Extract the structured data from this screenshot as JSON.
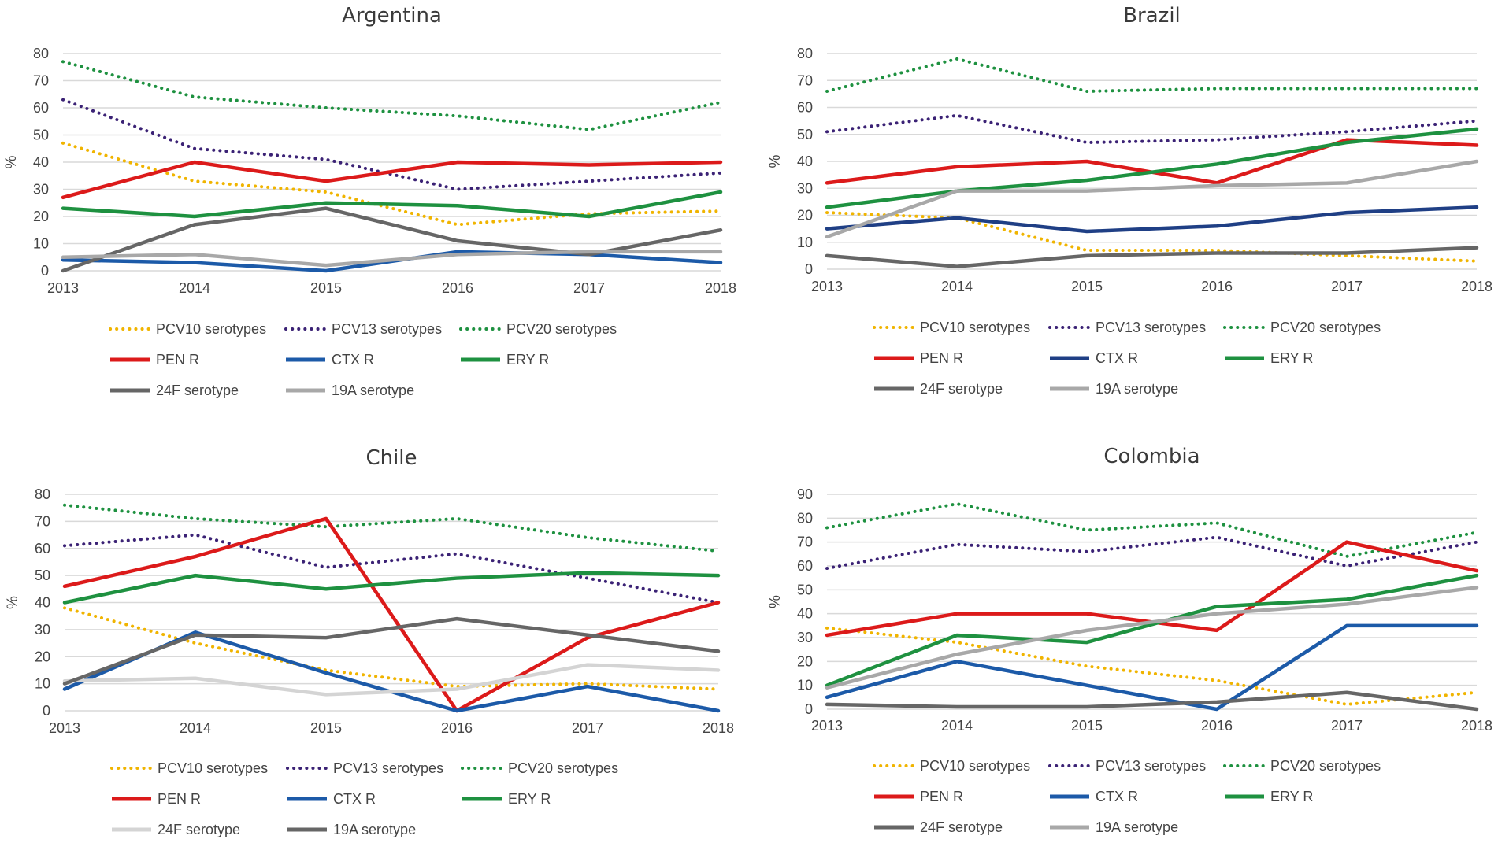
{
  "chart_data": [
    {
      "type": "line",
      "title": "Argentina",
      "ylabel": "%",
      "x": [
        "2013",
        "2014",
        "2015",
        "2016",
        "2017",
        "2018"
      ],
      "ylim": [
        0,
        80
      ],
      "yticks": [
        "0",
        "10",
        "20",
        "30",
        "40",
        "50",
        "60",
        "70",
        "80"
      ],
      "series": [
        {
          "name": "PCV10 serotypes",
          "values": [
            47,
            33,
            29,
            17,
            21,
            22
          ],
          "color": "#f0b400",
          "style": "dotted"
        },
        {
          "name": "PCV13 serotypes",
          "values": [
            63,
            45,
            41,
            30,
            33,
            36
          ],
          "color": "#3b2275",
          "style": "dotted"
        },
        {
          "name": "PCV20 serotypes",
          "values": [
            77,
            64,
            60,
            57,
            52,
            62
          ],
          "color": "#1e9140",
          "style": "dotted"
        },
        {
          "name": "PEN R",
          "values": [
            27,
            40,
            33,
            40,
            39,
            40
          ],
          "color": "#dc1a1a",
          "style": "solid"
        },
        {
          "name": "CTX R",
          "values": [
            4,
            3,
            0,
            7,
            6,
            3
          ],
          "color": "#1c5aa8",
          "style": "solid"
        },
        {
          "name": "ERY R",
          "values": [
            23,
            20,
            25,
            24,
            20,
            29
          ],
          "color": "#1e9140",
          "style": "solid"
        },
        {
          "name": "24F serotype",
          "values": [
            0,
            17,
            23,
            11,
            6,
            15
          ],
          "color": "#666666",
          "style": "solid"
        },
        {
          "name": "19A serotype",
          "values": [
            5,
            6,
            2,
            6,
            7,
            7
          ],
          "color": "#a8a8a8",
          "style": "solid"
        }
      ]
    },
    {
      "type": "line",
      "title": "Brazil",
      "ylabel": "%",
      "x": [
        "2013",
        "2014",
        "2015",
        "2016",
        "2017",
        "2018"
      ],
      "ylim": [
        0,
        80
      ],
      "yticks": [
        "0",
        "10",
        "20",
        "30",
        "40",
        "50",
        "60",
        "70",
        "80"
      ],
      "series": [
        {
          "name": "PCV10 serotypes",
          "values": [
            21,
            19,
            7,
            7,
            5,
            3
          ],
          "color": "#f0b400",
          "style": "dotted"
        },
        {
          "name": "PCV13 serotypes",
          "values": [
            51,
            57,
            47,
            48,
            51,
            55
          ],
          "color": "#3b2275",
          "style": "dotted"
        },
        {
          "name": "PCV20 serotypes",
          "values": [
            66,
            78,
            66,
            67,
            67,
            67
          ],
          "color": "#1e9140",
          "style": "dotted"
        },
        {
          "name": "PEN R",
          "values": [
            32,
            38,
            40,
            32,
            48,
            46
          ],
          "color": "#dc1a1a",
          "style": "solid"
        },
        {
          "name": "CTX R",
          "values": [
            15,
            19,
            14,
            16,
            21,
            23
          ],
          "color": "#1f3f85",
          "style": "solid"
        },
        {
          "name": "ERY R",
          "values": [
            23,
            29,
            33,
            39,
            47,
            52
          ],
          "color": "#1e9140",
          "style": "solid"
        },
        {
          "name": "24F serotype",
          "values": [
            5,
            1,
            5,
            6,
            6,
            8
          ],
          "color": "#666666",
          "style": "solid"
        },
        {
          "name": "19A serotype",
          "values": [
            12,
            29,
            29,
            31,
            32,
            40
          ],
          "color": "#a8a8a8",
          "style": "solid"
        }
      ]
    },
    {
      "type": "line",
      "title": "Chile",
      "ylabel": "%",
      "x": [
        "2013",
        "2014",
        "2015",
        "2016",
        "2017",
        "2018"
      ],
      "ylim": [
        0,
        80
      ],
      "yticks": [
        "0",
        "10",
        "20",
        "30",
        "40",
        "50",
        "60",
        "70",
        "80"
      ],
      "series": [
        {
          "name": "PCV10 serotypes",
          "values": [
            38,
            25,
            15,
            9,
            10,
            8
          ],
          "color": "#f0b400",
          "style": "dotted"
        },
        {
          "name": "PCV13 serotypes",
          "values": [
            61,
            65,
            53,
            58,
            49,
            40
          ],
          "color": "#3b2275",
          "style": "dotted"
        },
        {
          "name": "PCV20 serotypes",
          "values": [
            76,
            71,
            68,
            71,
            64,
            59
          ],
          "color": "#1e9140",
          "style": "dotted"
        },
        {
          "name": "PEN R",
          "values": [
            46,
            57,
            71,
            0,
            27,
            40
          ],
          "color": "#dc1a1a",
          "style": "solid"
        },
        {
          "name": "CTX R",
          "values": [
            8,
            29,
            14,
            0,
            9,
            0
          ],
          "color": "#1c5aa8",
          "style": "solid"
        },
        {
          "name": "ERY R",
          "values": [
            40,
            50,
            45,
            49,
            51,
            50
          ],
          "color": "#1e9140",
          "style": "solid"
        },
        {
          "name": "24F serotype",
          "values": [
            11,
            12,
            6,
            8,
            17,
            15
          ],
          "color": "#d4d4d4",
          "style": "solid"
        },
        {
          "name": "19A serotype",
          "values": [
            10,
            28,
            27,
            34,
            28,
            22
          ],
          "color": "#666666",
          "style": "solid"
        }
      ]
    },
    {
      "type": "line",
      "title": "Colombia",
      "ylabel": "%",
      "x": [
        "2013",
        "2014",
        "2015",
        "2016",
        "2017",
        "2018"
      ],
      "ylim": [
        0,
        90
      ],
      "yticks": [
        "0",
        "10",
        "20",
        "30",
        "40",
        "50",
        "60",
        "70",
        "80",
        "90"
      ],
      "series": [
        {
          "name": "PCV10 serotypes",
          "values": [
            34,
            28,
            18,
            12,
            2,
            7
          ],
          "color": "#f0b400",
          "style": "dotted"
        },
        {
          "name": "PCV13 serotypes",
          "values": [
            59,
            69,
            66,
            72,
            60,
            70
          ],
          "color": "#3b2275",
          "style": "dotted"
        },
        {
          "name": "PCV20 serotypes",
          "values": [
            76,
            86,
            75,
            78,
            64,
            74
          ],
          "color": "#1e9140",
          "style": "dotted"
        },
        {
          "name": "PEN R",
          "values": [
            31,
            40,
            40,
            33,
            70,
            58
          ],
          "color": "#dc1a1a",
          "style": "solid"
        },
        {
          "name": "CTX R",
          "values": [
            5,
            20,
            10,
            0,
            35,
            35
          ],
          "color": "#1c5aa8",
          "style": "solid"
        },
        {
          "name": "ERY R",
          "values": [
            10,
            31,
            28,
            43,
            46,
            56
          ],
          "color": "#1e9140",
          "style": "solid"
        },
        {
          "name": "24F serotype",
          "values": [
            2,
            1,
            1,
            3,
            7,
            0
          ],
          "color": "#666666",
          "style": "solid"
        },
        {
          "name": "19A serotype",
          "values": [
            9,
            23,
            33,
            40,
            44,
            51
          ],
          "color": "#a8a8a8",
          "style": "solid"
        }
      ]
    }
  ]
}
